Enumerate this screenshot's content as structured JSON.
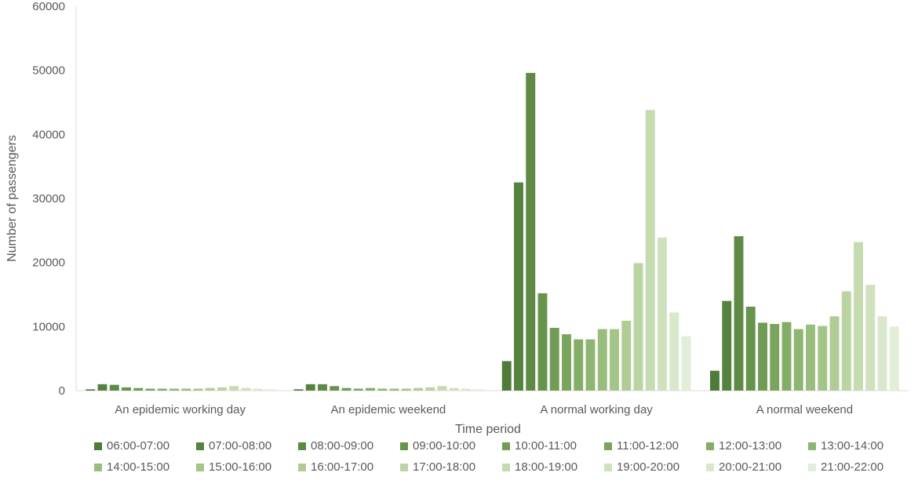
{
  "chart_data": {
    "type": "bar",
    "xlabel": "Time period",
    "ylabel": "Number of passengers",
    "ylim": [
      0,
      60000
    ],
    "yticks": [
      "0",
      "10000",
      "20000",
      "30000",
      "40000",
      "50000",
      "60000"
    ],
    "categories": [
      "An epidemic working day",
      "An epidemic weekend",
      "A normal working day",
      "A normal weekend"
    ],
    "grid": false,
    "legend_position": "bottom",
    "series": [
      {
        "name": "06:00-07:00",
        "color": "#4f7a3a",
        "values": [
          200,
          200,
          4600,
          3100
        ]
      },
      {
        "name": "07:00-08:00",
        "color": "#56823f",
        "values": [
          1000,
          1000,
          32500,
          14000
        ]
      },
      {
        "name": "08:00-09:00",
        "color": "#5e8a45",
        "values": [
          900,
          1000,
          49600,
          24100
        ]
      },
      {
        "name": "09:00-10:00",
        "color": "#67934c",
        "values": [
          500,
          700,
          15200,
          13100
        ]
      },
      {
        "name": "10:00-11:00",
        "color": "#709c54",
        "values": [
          400,
          400,
          9800,
          10600
        ]
      },
      {
        "name": "11:00-12:00",
        "color": "#7aa55d",
        "values": [
          300,
          300,
          8800,
          10400
        ]
      },
      {
        "name": "12:00-13:00",
        "color": "#84ad67",
        "values": [
          300,
          400,
          8000,
          10700
        ]
      },
      {
        "name": "13:00-14:00",
        "color": "#8eb571",
        "values": [
          300,
          300,
          8000,
          9600
        ]
      },
      {
        "name": "14:00-15:00",
        "color": "#99bd7c",
        "values": [
          300,
          300,
          9600,
          10300
        ]
      },
      {
        "name": "15:00-16:00",
        "color": "#a4c588",
        "values": [
          300,
          300,
          9600,
          10100
        ]
      },
      {
        "name": "16:00-17:00",
        "color": "#afcc95",
        "values": [
          400,
          400,
          10900,
          11600
        ]
      },
      {
        "name": "17:00-18:00",
        "color": "#bad4a2",
        "values": [
          500,
          500,
          19900,
          15500
        ]
      },
      {
        "name": "18:00-19:00",
        "color": "#c5dbb0",
        "values": [
          700,
          700,
          43800,
          23200
        ]
      },
      {
        "name": "19:00-20:00",
        "color": "#cfe1bd",
        "values": [
          400,
          400,
          23900,
          16500
        ]
      },
      {
        "name": "20:00-21:00",
        "color": "#d9e8cb",
        "values": [
          300,
          300,
          12200,
          11600
        ]
      },
      {
        "name": "21:00-22:00",
        "color": "#e3eed9",
        "values": [
          200,
          200,
          8500,
          10000
        ]
      }
    ]
  }
}
